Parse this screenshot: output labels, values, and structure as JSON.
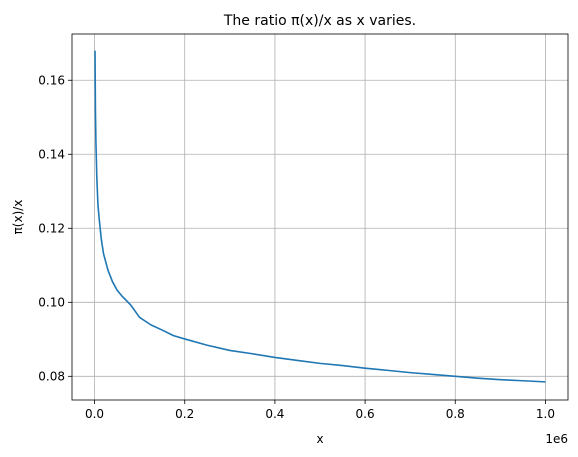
{
  "chart_data": {
    "type": "line",
    "title": "The ratio π(x)/x as x varies.",
    "xlabel": "x",
    "ylabel": "π(x)/x",
    "x_offset_label": "1e6",
    "grid": true,
    "xlim": [
      -0.05,
      1.05
    ],
    "ylim": [
      0.0736,
      0.1725
    ],
    "x_ticks": [
      0.0,
      0.2,
      0.4,
      0.6,
      0.8,
      1.0
    ],
    "x_tick_labels": [
      "0.0",
      "0.2",
      "0.4",
      "0.6",
      "0.8",
      "1.0"
    ],
    "y_ticks": [
      0.08,
      0.1,
      0.12,
      0.14,
      0.16
    ],
    "y_tick_labels": [
      "0.08",
      "0.10",
      "0.12",
      "0.14",
      "0.16"
    ],
    "series": [
      {
        "color": "#1f77b4",
        "x": [
          0.001,
          0.002,
          0.003,
          0.005,
          0.0075,
          0.01,
          0.015,
          0.02,
          0.03,
          0.04,
          0.05,
          0.06,
          0.08,
          0.1,
          0.125,
          0.15,
          0.175,
          0.2,
          0.25,
          0.3,
          0.35,
          0.4,
          0.45,
          0.5,
          0.55,
          0.6,
          0.65,
          0.7,
          0.75,
          0.8,
          0.85,
          0.9,
          0.95,
          1.0
        ],
        "y": [
          0.168,
          0.1515,
          0.1435,
          0.1338,
          0.1265,
          0.1229,
          0.117,
          0.1131,
          0.1086,
          0.1055,
          0.1033,
          0.1018,
          0.0993,
          0.0959,
          0.0939,
          0.0925,
          0.091,
          0.0901,
          0.0884,
          0.087,
          0.0861,
          0.0851,
          0.0843,
          0.0835,
          0.0829,
          0.0822,
          0.0816,
          0.081,
          0.0805,
          0.08,
          0.0795,
          0.0791,
          0.0788,
          0.0785
        ]
      }
    ]
  }
}
